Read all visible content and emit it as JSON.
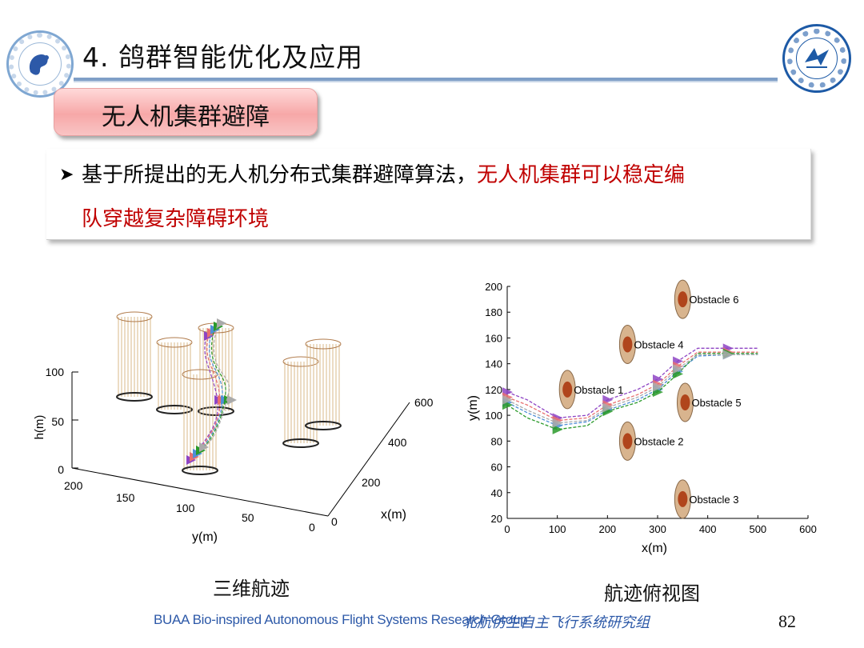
{
  "header": {
    "title": "4. 鸽群智能优化及应用",
    "section_label": "无人机集群避障"
  },
  "bullet": {
    "line1_plain": "基于所提出的无人机分布式集群避障算法，",
    "line1_red": "无人机集群可以稳定编",
    "line2_red": "队穿越复杂障碍环境"
  },
  "chart_data": [
    {
      "type": "line",
      "dimension": "3d",
      "caption": "三维航迹",
      "zlabel": "h(m)",
      "ylabel": "y(m)",
      "xlabel": "x(m)",
      "z_ticks": [
        "0",
        "50",
        "100"
      ],
      "y_ticks": [
        "200",
        "150",
        "100",
        "50",
        "0"
      ],
      "x_ticks": [
        "0",
        "200",
        "400",
        "600"
      ],
      "obstacle_count": 6,
      "uav_count": 5
    },
    {
      "type": "line",
      "caption": "航迹俯视图",
      "xlabel": "x(m)",
      "ylabel": "y(m)",
      "xlim": [
        0,
        600
      ],
      "ylim": [
        20,
        200
      ],
      "x_ticks": [
        0,
        100,
        200,
        300,
        400,
        500,
        600
      ],
      "y_ticks": [
        20,
        40,
        60,
        80,
        100,
        120,
        140,
        160,
        180,
        200
      ],
      "obstacles": [
        {
          "label": "Obstacle 1",
          "x": 120,
          "y": 120
        },
        {
          "label": "Obstacle 2",
          "x": 240,
          "y": 80
        },
        {
          "label": "Obstacle 3",
          "x": 350,
          "y": 35
        },
        {
          "label": "Obstacle 4",
          "x": 240,
          "y": 155
        },
        {
          "label": "Obstacle 5",
          "x": 355,
          "y": 110
        },
        {
          "label": "Obstacle 6",
          "x": 350,
          "y": 190
        }
      ],
      "series": [
        {
          "color": "#8e44c4",
          "x": [
            0,
            40,
            100,
            160,
            200,
            260,
            300,
            340,
            380,
            440,
            500
          ],
          "y": [
            118,
            112,
            98,
            100,
            112,
            120,
            128,
            142,
            152,
            152,
            152
          ]
        },
        {
          "color": "#e87070",
          "x": [
            0,
            40,
            100,
            160,
            200,
            260,
            300,
            340,
            380,
            440,
            500
          ],
          "y": [
            114,
            108,
            96,
            98,
            108,
            116,
            124,
            138,
            149,
            149,
            149
          ]
        },
        {
          "color": "#4f8fd6",
          "x": [
            0,
            40,
            100,
            160,
            200,
            260,
            300,
            340,
            380,
            440,
            500
          ],
          "y": [
            110,
            102,
            92,
            95,
            104,
            112,
            120,
            134,
            146,
            147,
            147
          ]
        },
        {
          "color": "#2a9a2a",
          "x": [
            0,
            40,
            100,
            160,
            200,
            260,
            300,
            340,
            380,
            440,
            500
          ],
          "y": [
            108,
            98,
            89,
            92,
            103,
            110,
            118,
            132,
            148,
            148,
            148
          ]
        },
        {
          "color": "#aaaaaa",
          "x": [
            0,
            40,
            100,
            160,
            200,
            260,
            300,
            340,
            380,
            440,
            500
          ],
          "y": [
            112,
            104,
            94,
            96,
            106,
            114,
            122,
            136,
            147,
            147,
            147
          ]
        }
      ]
    }
  ],
  "captions": {
    "left": "三维航迹",
    "right": "航迹俯视图"
  },
  "footer": {
    "group_en": "BUAA Bio-inspired Autonomous Flight Systems Research Group",
    "group_cn": "北航仿生自主飞行系统研究组",
    "page_number": "82"
  }
}
